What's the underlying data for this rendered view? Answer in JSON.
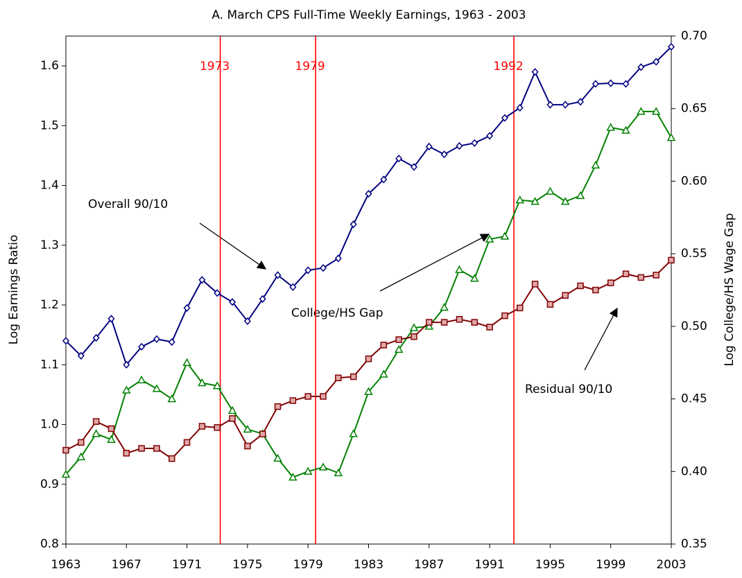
{
  "chart_data": {
    "type": "line",
    "title": "A. March CPS Full-Time Weekly Earnings, 1963 - 2003",
    "y_label": "Log Earnings Ratio",
    "y2_label": "Log College/HS Wage Gap",
    "x": [
      1963,
      1964,
      1965,
      1966,
      1967,
      1968,
      1969,
      1970,
      1971,
      1972,
      1973,
      1974,
      1975,
      1976,
      1977,
      1978,
      1979,
      1980,
      1981,
      1982,
      1983,
      1984,
      1985,
      1986,
      1987,
      1988,
      1989,
      1990,
      1991,
      1992,
      1993,
      1994,
      1995,
      1996,
      1997,
      1998,
      1999,
      2000,
      2001,
      2002,
      2003
    ],
    "xlim": [
      1963,
      2003
    ],
    "xticks": [
      1963,
      1967,
      1971,
      1975,
      1979,
      1983,
      1987,
      1991,
      1995,
      1999,
      2003
    ],
    "ylim": [
      0.8,
      1.65
    ],
    "yticks": [
      {
        "value": 0.8,
        "label": "0.8"
      },
      {
        "value": 0.9,
        "label": "0.9"
      },
      {
        "value": 1.0,
        "label": "1.0"
      },
      {
        "value": 1.1,
        "label": "1.1"
      },
      {
        "value": 1.2,
        "label": "1.2"
      },
      {
        "value": 1.3,
        "label": "1.3"
      },
      {
        "value": 1.4,
        "label": "1.4"
      },
      {
        "value": 1.5,
        "label": "1.5"
      },
      {
        "value": 1.6,
        "label": "1.6"
      }
    ],
    "y2lim": [
      0.35,
      0.7
    ],
    "y2ticks": [
      {
        "value": 0.35,
        "label": "0.35"
      },
      {
        "value": 0.4,
        "label": "0.40"
      },
      {
        "value": 0.45,
        "label": "0.45"
      },
      {
        "value": 0.5,
        "label": "0.50"
      },
      {
        "value": 0.55,
        "label": "0.55"
      },
      {
        "value": 0.6,
        "label": "0.60"
      },
      {
        "value": 0.65,
        "label": "0.65"
      },
      {
        "value": 0.7,
        "label": "0.70"
      }
    ],
    "vlines": [
      {
        "value": 1973.2,
        "label": "1973"
      },
      {
        "value": 1979.5,
        "label": "1979"
      },
      {
        "value": 1992.6,
        "label": "1992"
      }
    ],
    "vline_color": "#ff0000",
    "series": [
      {
        "name": "Overall 90/10",
        "color": "#000080",
        "marker": "diamond",
        "axis": "y",
        "values": [
          1.14,
          1.115,
          1.145,
          1.177,
          1.1,
          1.13,
          1.143,
          1.138,
          1.195,
          1.242,
          1.22,
          1.205,
          1.173,
          1.21,
          1.25,
          1.23,
          1.258,
          1.262,
          1.278,
          1.335,
          1.386,
          1.41,
          1.445,
          1.431,
          1.465,
          1.452,
          1.466,
          1.471,
          1.483,
          1.513,
          1.53,
          1.59,
          1.535,
          1.535,
          1.54,
          1.57,
          1.571,
          1.57,
          1.598,
          1.607,
          1.632
        ]
      },
      {
        "name": "College/HS Gap",
        "color": "#008000",
        "marker": "triangle",
        "axis": "y2",
        "values": [
          0.398,
          0.41,
          0.426,
          0.422,
          0.456,
          0.463,
          0.457,
          0.45,
          0.475,
          0.461,
          0.459,
          0.442,
          0.429,
          0.426,
          0.409,
          0.396,
          0.4,
          0.403,
          0.399,
          0.426,
          0.455,
          0.467,
          0.484,
          0.499,
          0.5,
          0.513,
          0.539,
          0.533,
          0.56,
          0.562,
          0.587,
          0.586,
          0.593,
          0.586,
          0.59,
          0.611,
          0.637,
          0.635,
          0.648,
          0.648,
          0.63
        ]
      },
      {
        "name": "Residual 90/10",
        "color": "#800000",
        "marker": "square",
        "axis": "y",
        "values": [
          0.957,
          0.97,
          1.005,
          0.993,
          0.952,
          0.96,
          0.96,
          0.943,
          0.97,
          0.997,
          0.995,
          1.01,
          0.964,
          0.984,
          1.03,
          1.04,
          1.047,
          1.047,
          1.078,
          1.08,
          1.11,
          1.133,
          1.142,
          1.147,
          1.171,
          1.171,
          1.176,
          1.171,
          1.163,
          1.182,
          1.195,
          1.235,
          1.201,
          1.216,
          1.232,
          1.225,
          1.237,
          1.252,
          1.246,
          1.25,
          1.275
        ]
      }
    ],
    "annotations": [
      {
        "text": "Overall 90/10"
      },
      {
        "text": "College/HS Gap"
      },
      {
        "text": "Residual 90/10"
      }
    ]
  }
}
